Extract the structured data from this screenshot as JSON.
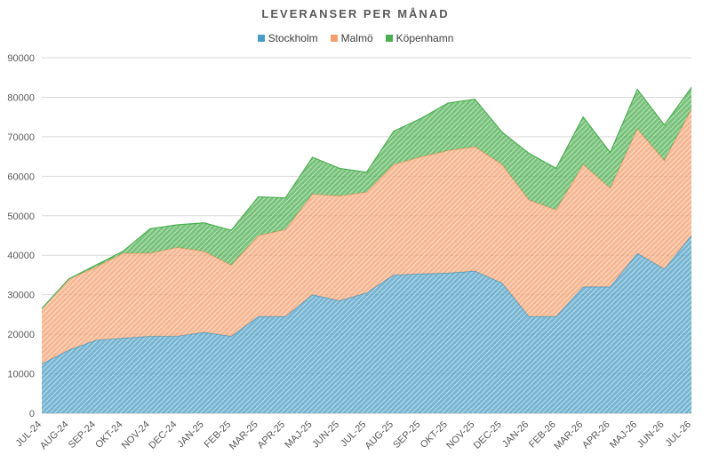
{
  "chart_data": {
    "type": "area",
    "stacked": true,
    "title": "LEVERANSER PER MÅNAD",
    "xlabel": "",
    "ylabel": "",
    "ylim": [
      0,
      90000
    ],
    "yticks": [
      0,
      10000,
      20000,
      30000,
      40000,
      50000,
      60000,
      70000,
      80000,
      90000
    ],
    "grid": true,
    "legend_position": "top",
    "categories": [
      "JUL-24",
      "AUG-24",
      "SEP-24",
      "OKT-24",
      "NOV-24",
      "DEC-24",
      "JAN-25",
      "FEB-25",
      "MAR-25",
      "APR-25",
      "MAJ-25",
      "JUN-25",
      "JUL-25",
      "AUG-25",
      "SEP-25",
      "OKT-25",
      "NOV-25",
      "DEC-25",
      "JAN-26",
      "FEB-26",
      "MAR-26",
      "APR-26",
      "MAJ-26",
      "JUN-26",
      "JUL-26"
    ],
    "series": [
      {
        "name": "Stockholm",
        "color": "#4a9dc4",
        "values": [
          12500,
          16000,
          18500,
          19000,
          19500,
          19500,
          20500,
          19500,
          24500,
          24500,
          30000,
          28500,
          30500,
          35000,
          35300,
          35500,
          36000,
          33000,
          24500,
          24500,
          32000,
          32000,
          40500,
          36500,
          45000
        ]
      },
      {
        "name": "Malmö",
        "color": "#f2a070",
        "values": [
          14000,
          18000,
          18500,
          21500,
          21000,
          22500,
          20500,
          18000,
          20500,
          22000,
          25500,
          26500,
          25500,
          28000,
          29600,
          31000,
          31500,
          30000,
          29500,
          27000,
          31000,
          25000,
          31500,
          27500,
          32000
        ]
      },
      {
        "name": "Köpenhamn",
        "color": "#4caf50",
        "values": [
          0,
          0,
          500,
          500,
          6200,
          5700,
          7200,
          8800,
          9800,
          8000,
          9300,
          7000,
          5000,
          8400,
          9700,
          12000,
          12000,
          8200,
          11800,
          10500,
          12000,
          9000,
          10000,
          9000,
          5500
        ]
      }
    ]
  }
}
